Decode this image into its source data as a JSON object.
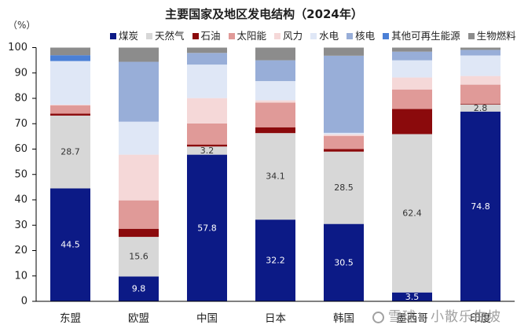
{
  "chart_data": {
    "type": "bar",
    "stacked": true,
    "title": "主要国家及地区发电结构（2024年）",
    "ylabel": "（%）",
    "ylim": [
      0,
      100
    ],
    "yticks": [
      0,
      10,
      20,
      30,
      40,
      50,
      60,
      70,
      80,
      90,
      100
    ],
    "grid": false,
    "legend": "top",
    "categories": [
      "东盟",
      "欧盟",
      "中国",
      "日本",
      "韩国",
      "墨西哥",
      "印度"
    ],
    "series": [
      {
        "name": "煤炭",
        "color": "#0c1a86",
        "show_labels": true,
        "label_color": "#ffffff",
        "values": [
          44.5,
          9.8,
          57.8,
          32.2,
          30.5,
          3.5,
          74.8
        ]
      },
      {
        "name": "天然气",
        "color": "#d7d7d7",
        "show_labels": true,
        "label_color": "#333333",
        "values": [
          28.7,
          15.6,
          3.2,
          34.1,
          28.5,
          62.4,
          2.8
        ]
      },
      {
        "name": "石油",
        "color": "#8b0a0c",
        "show_labels": false,
        "values": [
          0.8,
          3.2,
          0.8,
          2.3,
          1.0,
          9.9,
          0.3
        ]
      },
      {
        "name": "太阳能",
        "color": "#e09a98",
        "show_labels": false,
        "values": [
          3.2,
          11.2,
          8.3,
          9.7,
          5.2,
          7.7,
          7.5
        ]
      },
      {
        "name": "风力",
        "color": "#f5d8d8",
        "show_labels": false,
        "values": [
          0.3,
          18.0,
          10.0,
          0.9,
          0.6,
          4.7,
          3.4
        ]
      },
      {
        "name": "水电",
        "color": "#dfe7f6",
        "show_labels": false,
        "values": [
          17.2,
          13.0,
          13.2,
          7.6,
          0.6,
          6.8,
          8.1
        ]
      },
      {
        "name": "核电",
        "color": "#98aed8",
        "show_labels": false,
        "values": [
          0,
          23.6,
          4.6,
          8.2,
          30.4,
          3.4,
          2.2
        ]
      },
      {
        "name": "其他可再生能源",
        "color": "#4b80d6",
        "show_labels": false,
        "values": [
          2.3,
          0,
          0,
          0,
          0,
          0,
          0
        ]
      },
      {
        "name": "生物燃料",
        "color": "#8c8c8c",
        "show_labels": false,
        "values": [
          3.0,
          5.6,
          2.1,
          5.0,
          3.2,
          1.6,
          0.9
        ]
      }
    ]
  },
  "watermark": {
    "text": "雪球：小散乐生坡",
    "icon": "snowball-logo-icon"
  }
}
